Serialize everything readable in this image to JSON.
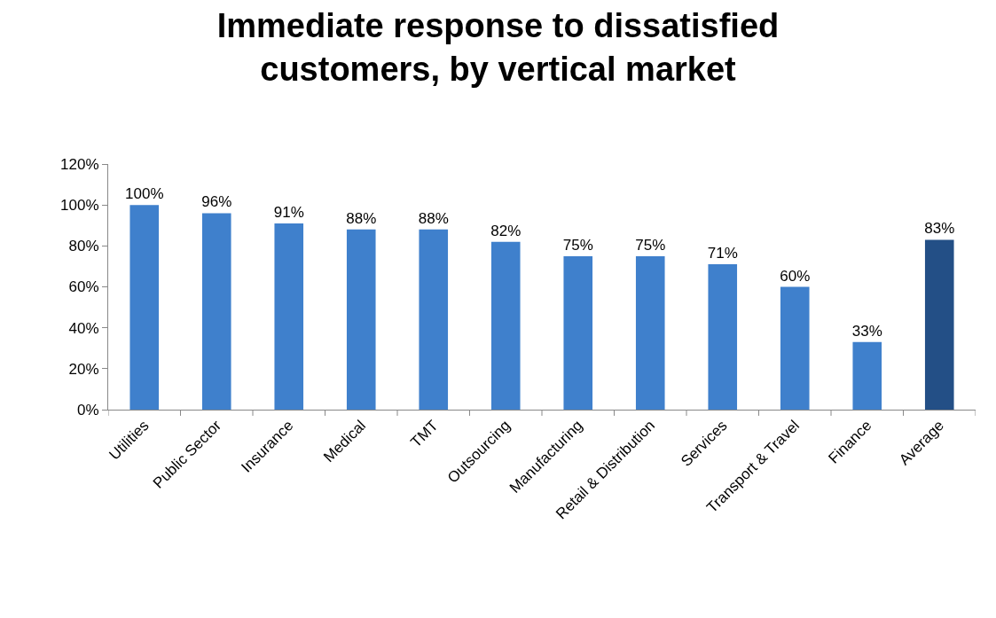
{
  "chart_data": {
    "type": "bar",
    "title": "Immediate response to dissatisfied\ncustomers, by vertical market",
    "categories": [
      "Utilities",
      "Public Sector",
      "Insurance",
      "Medical",
      "TMT",
      "Outsourcing",
      "Manufacturing",
      "Retail & Distribution",
      "Services",
      "Transport & Travel",
      "Finance",
      "Average"
    ],
    "values": [
      100,
      96,
      91,
      88,
      88,
      82,
      75,
      75,
      71,
      60,
      33,
      83
    ],
    "value_labels": [
      "100%",
      "96%",
      "91%",
      "88%",
      "88%",
      "82%",
      "75%",
      "75%",
      "71%",
      "60%",
      "33%",
      "83%"
    ],
    "colors": [
      "#3f80cc",
      "#3f80cc",
      "#3f80cc",
      "#3f80cc",
      "#3f80cc",
      "#3f80cc",
      "#3f80cc",
      "#3f80cc",
      "#3f80cc",
      "#3f80cc",
      "#3f80cc",
      "#234f86"
    ],
    "ylim": [
      0,
      120
    ],
    "yticks": [
      {
        "value": 0,
        "label": "0%"
      },
      {
        "value": 20,
        "label": "20%"
      },
      {
        "value": 40,
        "label": "40%"
      },
      {
        "value": 60,
        "label": "60%"
      },
      {
        "value": 80,
        "label": "80%"
      },
      {
        "value": 100,
        "label": "100%"
      },
      {
        "value": 120,
        "label": "120%"
      }
    ],
    "data_labels": false
  }
}
